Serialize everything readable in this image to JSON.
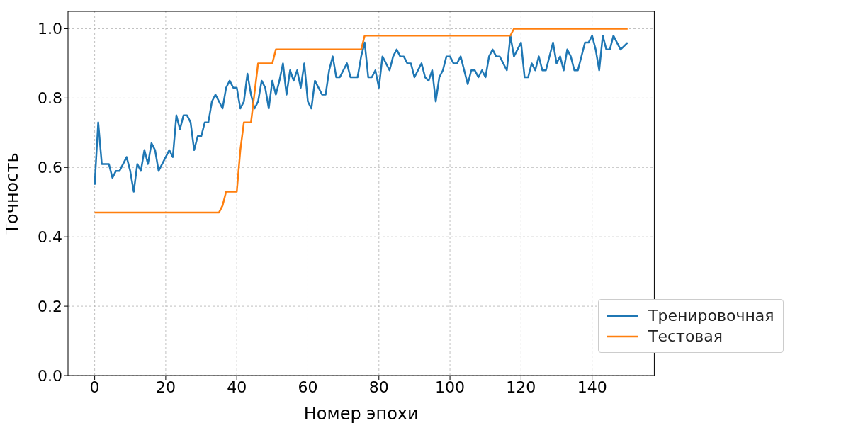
{
  "chart_data": {
    "type": "line",
    "xlabel": "Номер эпохи",
    "ylabel": "Точность",
    "xlim": [
      -7.5,
      157.5
    ],
    "xticks": [
      0,
      20,
      40,
      60,
      80,
      100,
      120,
      140
    ],
    "ylim": [
      0,
      1.05
    ],
    "yticks": [
      {
        "value": 0,
        "label": "0.0"
      },
      0.2,
      0.4,
      0.6,
      0.8,
      {
        "value": 1,
        "label": "1.0"
      }
    ],
    "grid": true,
    "legend": "bottom right",
    "line_style": "solid",
    "marker": "none",
    "series": [
      {
        "name": "Тренировочная",
        "color": "#1f77b4",
        "x": [
          0,
          1,
          2,
          4,
          5,
          6,
          7,
          9,
          10,
          11,
          12,
          13,
          14,
          15,
          16,
          17,
          18,
          21,
          22,
          23,
          24,
          25,
          26,
          27,
          28,
          29,
          30,
          31,
          32,
          33,
          34,
          35,
          36,
          37,
          38,
          39,
          40,
          41,
          42,
          43,
          44,
          45,
          46,
          47,
          48,
          49,
          50,
          51,
          52,
          53,
          54,
          55,
          56,
          57,
          58,
          59,
          60,
          61,
          62,
          64,
          65,
          66,
          67,
          68,
          69,
          71,
          72,
          74,
          75,
          76,
          77,
          78,
          79,
          80,
          81,
          83,
          84,
          85,
          86,
          87,
          88,
          89,
          90,
          92,
          93,
          94,
          95,
          96,
          97,
          98,
          99,
          100,
          101,
          102,
          103,
          105,
          106,
          107,
          108,
          109,
          110,
          111,
          112,
          113,
          114,
          116,
          117,
          118,
          120,
          121,
          122,
          123,
          124,
          125,
          126,
          127,
          129,
          130,
          131,
          132,
          133,
          134,
          135,
          136,
          138,
          139,
          140,
          141,
          142,
          143,
          144,
          145,
          146,
          148,
          150
        ],
        "values": [
          0.55,
          0.73,
          0.61,
          0.61,
          0.57,
          0.59,
          0.59,
          0.63,
          0.59,
          0.53,
          0.61,
          0.59,
          0.65,
          0.61,
          0.67,
          0.65,
          0.59,
          0.65,
          0.63,
          0.75,
          0.71,
          0.75,
          0.75,
          0.73,
          0.65,
          0.69,
          0.69,
          0.73,
          0.73,
          0.79,
          0.81,
          0.79,
          0.77,
          0.83,
          0.85,
          0.83,
          0.83,
          0.77,
          0.79,
          0.87,
          0.81,
          0.77,
          0.79,
          0.85,
          0.83,
          0.77,
          0.85,
          0.81,
          0.85,
          0.9,
          0.81,
          0.88,
          0.85,
          0.88,
          0.83,
          0.9,
          0.79,
          0.77,
          0.85,
          0.81,
          0.81,
          0.88,
          0.92,
          0.86,
          0.86,
          0.9,
          0.86,
          0.86,
          0.92,
          0.96,
          0.86,
          0.86,
          0.88,
          0.83,
          0.92,
          0.88,
          0.92,
          0.94,
          0.92,
          0.92,
          0.9,
          0.9,
          0.86,
          0.9,
          0.86,
          0.85,
          0.88,
          0.79,
          0.86,
          0.88,
          0.92,
          0.92,
          0.9,
          0.9,
          0.92,
          0.84,
          0.88,
          0.88,
          0.86,
          0.88,
          0.86,
          0.92,
          0.94,
          0.92,
          0.92,
          0.88,
          0.98,
          0.92,
          0.96,
          0.86,
          0.86,
          0.9,
          0.88,
          0.92,
          0.88,
          0.88,
          0.96,
          0.9,
          0.92,
          0.88,
          0.94,
          0.92,
          0.88,
          0.88,
          0.96,
          0.96,
          0.98,
          0.94,
          0.88,
          0.98,
          0.94,
          0.94,
          0.98,
          0.94,
          0.96
        ]
      },
      {
        "name": "Тестовая",
        "color": "#ff7f0e",
        "x": [
          0,
          35,
          36,
          37,
          40,
          41,
          42,
          44,
          46,
          50,
          51,
          75,
          76,
          117,
          118,
          150
        ],
        "values": [
          0.47,
          0.47,
          0.49,
          0.53,
          0.53,
          0.65,
          0.73,
          0.73,
          0.9,
          0.9,
          0.94,
          0.94,
          0.98,
          0.98,
          1.0,
          1.0
        ]
      }
    ]
  }
}
